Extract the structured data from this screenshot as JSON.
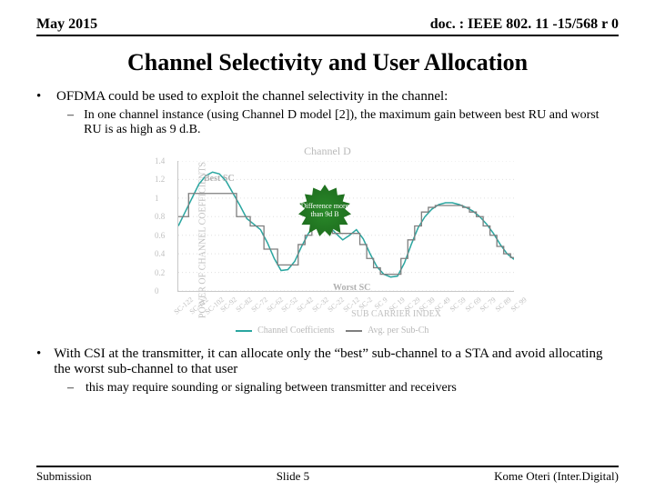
{
  "header": {
    "left": "May 2015",
    "right": "doc. : IEEE 802. 11 -15/568 r 0"
  },
  "title": "Channel Selectivity and User Allocation",
  "bullets": {
    "b1": "OFDMA could be used to exploit the channel selectivity in the channel:",
    "b1a": "In one channel instance (using Channel D model [2]), the maximum gain between best RU and worst RU is as high as 9 d.B.",
    "b2": "With CSI at the transmitter, it can allocate only the “best” sub-channel to a STA and avoid allocating the worst sub-channel to that user",
    "b2a": "this may require sounding or signaling between transmitter and receivers"
  },
  "chart": {
    "type": "line",
    "title": "Channel D",
    "ylabel": "POWER OF CHANNEL COEFFICIENTS",
    "xlabel": "SUB CARRIER INDEX",
    "legend": {
      "s1": "Channel Coefficients",
      "s2": "Avg. per Sub-Ch"
    },
    "legend_colors": {
      "s1": "#2aa6a0",
      "s2": "#7e7e7e"
    },
    "yticks": [
      "0",
      "0.2",
      "0.4",
      "0.6",
      "0.8",
      "1",
      "1.2",
      "1.4"
    ],
    "ylim": [
      0,
      1.4
    ],
    "xticks": [
      "SC-122",
      "SC-112",
      "SC-102",
      "SC-92",
      "SC-82",
      "SC-72",
      "SC-62",
      "SC-52",
      "SC-42",
      "SC-32",
      "SC-22",
      "SC-12",
      "SC-2",
      "SC 9",
      "SC 19",
      "SC 29",
      "SC 39",
      "SC 49",
      "SC 59",
      "SC 69",
      "SC 79",
      "SC 89",
      "SC 99"
    ],
    "annot_best": "Best SC",
    "annot_worst": "Worst SC",
    "callout": "Difference more than 9d B",
    "line_color": "#2aa6a0",
    "avg_color": "#7e7e7e",
    "grid_color": "#e0e0e0",
    "background_color": "#ffffff",
    "series_main": [
      0.7,
      0.85,
      1.0,
      1.15,
      1.24,
      1.28,
      1.26,
      1.18,
      1.05,
      0.92,
      0.78,
      0.72,
      0.66,
      0.52,
      0.35,
      0.22,
      0.23,
      0.32,
      0.48,
      0.62,
      0.72,
      0.76,
      0.7,
      0.62,
      0.55,
      0.6,
      0.66,
      0.56,
      0.4,
      0.26,
      0.18,
      0.15,
      0.16,
      0.3,
      0.5,
      0.68,
      0.8,
      0.88,
      0.93,
      0.95,
      0.95,
      0.93,
      0.9,
      0.86,
      0.8,
      0.72,
      0.62,
      0.5,
      0.4,
      0.34
    ],
    "series_avg": [
      0.8,
      0.8,
      1.05,
      1.05,
      1.05,
      1.05,
      1.05,
      1.05,
      1.05,
      0.8,
      0.8,
      0.7,
      0.7,
      0.45,
      0.45,
      0.28,
      0.28,
      0.28,
      0.5,
      0.6,
      0.7,
      0.7,
      0.7,
      0.62,
      0.62,
      0.62,
      0.62,
      0.5,
      0.35,
      0.25,
      0.18,
      0.18,
      0.18,
      0.35,
      0.55,
      0.7,
      0.85,
      0.9,
      0.92,
      0.92,
      0.92,
      0.92,
      0.9,
      0.85,
      0.8,
      0.7,
      0.6,
      0.48,
      0.4,
      0.36
    ]
  },
  "footer": {
    "left": "Submission",
    "center": "Slide 5",
    "right": "Kome Oteri (Inter.Digital)"
  }
}
